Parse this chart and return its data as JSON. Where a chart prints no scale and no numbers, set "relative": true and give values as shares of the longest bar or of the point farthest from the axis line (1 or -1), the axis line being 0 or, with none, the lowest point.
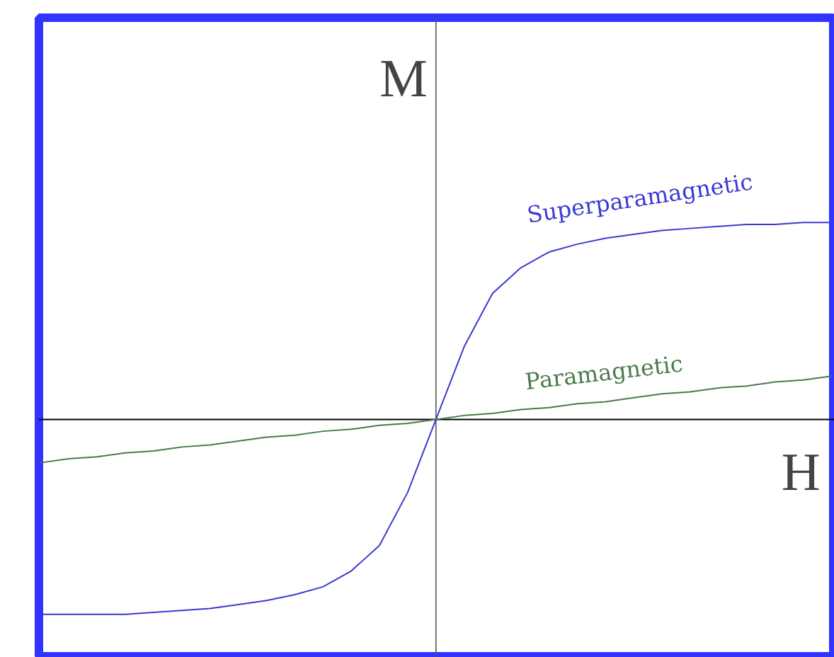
{
  "chart_data": {
    "type": "line",
    "relative": true,
    "xlabel": "H",
    "ylabel": "M",
    "categories": [
      null,
      null,
      null,
      null,
      null,
      null,
      null,
      null,
      null,
      null,
      null,
      null,
      null,
      null,
      null,
      null,
      null,
      null,
      null,
      null,
      null,
      null,
      null,
      null,
      null,
      null,
      null,
      null,
      null
    ],
    "series": [
      {
        "name": "Superparamagnetic",
        "color": "#3a3ad0",
        "values": [
          -0.99,
          -0.99,
          -0.99,
          -0.99,
          -0.98,
          -0.97,
          -0.96,
          -0.94,
          -0.92,
          -0.89,
          -0.85,
          -0.77,
          -0.64,
          -0.37,
          0,
          0.37,
          0.64,
          0.77,
          0.85,
          0.89,
          0.92,
          0.94,
          0.96,
          0.97,
          0.98,
          0.99,
          0.99,
          1.0,
          1.0
        ]
      },
      {
        "name": "Paramagnetic",
        "color": "#4a7a4a",
        "values": [
          -0.22,
          -0.2,
          -0.19,
          -0.17,
          -0.16,
          -0.14,
          -0.13,
          -0.11,
          -0.09,
          -0.08,
          -0.06,
          -0.05,
          -0.03,
          -0.02,
          0,
          0.02,
          0.03,
          0.05,
          0.06,
          0.08,
          0.09,
          0.11,
          0.13,
          0.14,
          0.16,
          0.17,
          0.19,
          0.2,
          0.22
        ]
      }
    ],
    "marker": "none",
    "line_style": "solid",
    "grid": false
  }
}
